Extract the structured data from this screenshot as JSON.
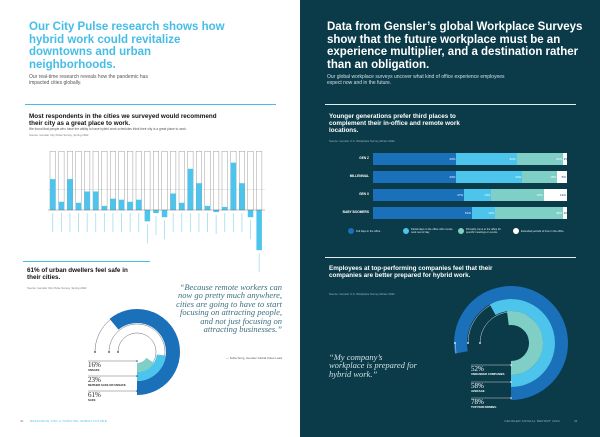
{
  "left_page": {
    "headline": "Our City Pulse research shows how hybrid work could revitalize downtowns and urban neighborhoods.",
    "intro": "Our real-time research reveals how the pandemic has impacted cities globally.",
    "chart1": {
      "title": "Most respondents in the cities we surveyed would recommend their city as a great place to work.",
      "subtitle": "We found that people who have the ability to have hybrid work schedules think their city is a great place to work.",
      "source": "Source: Gensler City Pulse Survey, Spring 2022"
    },
    "chart2": {
      "title": "61% of urban dwellers feel safe in their cities.",
      "source": "Source: Gensler City Pulse Survey, Spring 2022"
    },
    "quote": "“Because remote workers can now go pretty much anywhere, cities are going to have to start focusing on attracting people, and not just focusing on attracting businesses.”",
    "quote_attribution": "— Sofia Song, Gensler Global Cities Lead",
    "page_number": "40",
    "footer": "DESIGNING FOR A THRIVING URBAN FUTURE"
  },
  "right_page": {
    "headline": "Data from Gensler’s global Workplace Surveys show that the future workplace must be an experience multiplier, and a destination rather than an obligation.",
    "intro": "Our global workplace surveys uncover what kind of office experience employees expect now and in the future.",
    "chart3": {
      "title": "Younger generations prefer third places to complement their in-office and remote work locations.",
      "source": "Source: Gensler U.S. Workplace Survey Winter 2022"
    },
    "chart4": {
      "title": "Employees at top-performing companies feel that their companies are better prepared for hybrid work.",
      "source": "Source: Gensler U.S. Workplace Survey Winter 2022"
    },
    "quote": "“My company’s workplace is prepared for hybrid work.”",
    "page_number": "41",
    "footer": "GENSLER ANNUAL REPORT 2022"
  },
  "colors": {
    "accent_cyan": "#45bde6",
    "dark_blue": "#1a70b9",
    "light_blue": "#4cc4eb",
    "teal": "#80cfc6",
    "white": "#ffffff",
    "dark_bg": "#0b3a48"
  },
  "chart_data": [
    {
      "type": "bar",
      "values": [
        30,
        8,
        30,
        7,
        18,
        18,
        4,
        11,
        10,
        8,
        10,
        -11,
        -3,
        -7,
        16,
        7,
        40,
        26,
        4,
        -2,
        3,
        46,
        26,
        -7,
        -39
      ],
      "ylim": [
        -40,
        57
      ]
    },
    {
      "type": "pie",
      "variant": "radial-rings",
      "categories": [
        "Safe",
        "Neither safe or unsafe",
        "Unsafe"
      ],
      "labels": [
        {
          "pct": "16%",
          "name": "Unsafe"
        },
        {
          "pct": "23%",
          "name": "Neither safe or unsafe"
        },
        {
          "pct": "61%",
          "name": "Safe"
        }
      ],
      "values": [
        61,
        23,
        16
      ]
    },
    {
      "type": "bar",
      "orientation": "horizontal-stacked",
      "categories": [
        "GEN Z",
        "MILLENNIAL",
        "GEN X",
        "BABY BOOMERS"
      ],
      "series": [
        {
          "name": "Full days in the office",
          "values": [
            43,
            43,
            47,
            51
          ]
        },
        {
          "name": "Partial days in the office with remote work rest of day",
          "values": [
            31,
            34,
            14,
            12
          ]
        },
        {
          "name": "Primarily come to the office for specific meetings or events",
          "values": [
            24,
            18,
            27,
            35
          ]
        },
        {
          "name": "Extended periods of time in the office",
          "values": [
            2,
            5,
            12,
            2
          ]
        }
      ]
    },
    {
      "type": "pie",
      "variant": "radial-rings",
      "categories": [
        "Top performing",
        "Average",
        "Unranked companies"
      ],
      "labels": [
        {
          "pct": "52%",
          "name": "Unranked companies"
        },
        {
          "pct": "58%",
          "name": "Average"
        },
        {
          "pct": "78%",
          "name": "Top performing"
        }
      ],
      "values": [
        78,
        58,
        52
      ]
    }
  ]
}
